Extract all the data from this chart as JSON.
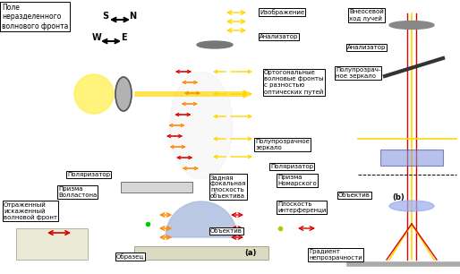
{
  "bg_color": "#ffffff",
  "title": "",
  "labels": {
    "pole": "Поле\nнеразделенного\nволнового фронта",
    "image": "Изображение",
    "analyzer_top": "Анализатор",
    "offaxis": "Внеосевой\nход лучей",
    "analyzer_right": "Анализатор",
    "semitransparent_top": "Полупрозрач-\nное зеркало",
    "orthogonal": "Ортогональные\nволновые фронты\nс разностью\nоптических путей",
    "semitransparent_mid": "Полупрозрачное\nзеркало",
    "polarizer_mid": "Поляризатор",
    "polarizer_left": "Поляризатор",
    "wollaston": "Призма\nВолластона",
    "reflected": "Отраженный\nискаженный\nволновой фронт",
    "rear_focal": "Задняя\nфокальная\nплоскость\nобъектива",
    "nomarski": "Призма\nНомарского",
    "interference": "Плоскость\nинтерференци",
    "objective_label": "Объектив",
    "objective_right": "Объектив",
    "sample": "Образец",
    "a_label": "(a)",
    "b_label": "(b)",
    "gradient": "Градиент\nнепрозрачности",
    "S": "S",
    "N": "N",
    "W": "W",
    "E": "E"
  },
  "colors": {
    "box_edge": "#000000",
    "box_face": "#ffffff",
    "yellow": "#FFD700",
    "red": "#DD0000",
    "orange": "#FF8800",
    "gray": "#808080",
    "blue_prism": "#8888CC",
    "dark": "#222222",
    "arrow_yellow": "#FFD700",
    "arrow_red": "#CC0000",
    "text_dark": "#000000",
    "mirror_gray": "#999999"
  }
}
